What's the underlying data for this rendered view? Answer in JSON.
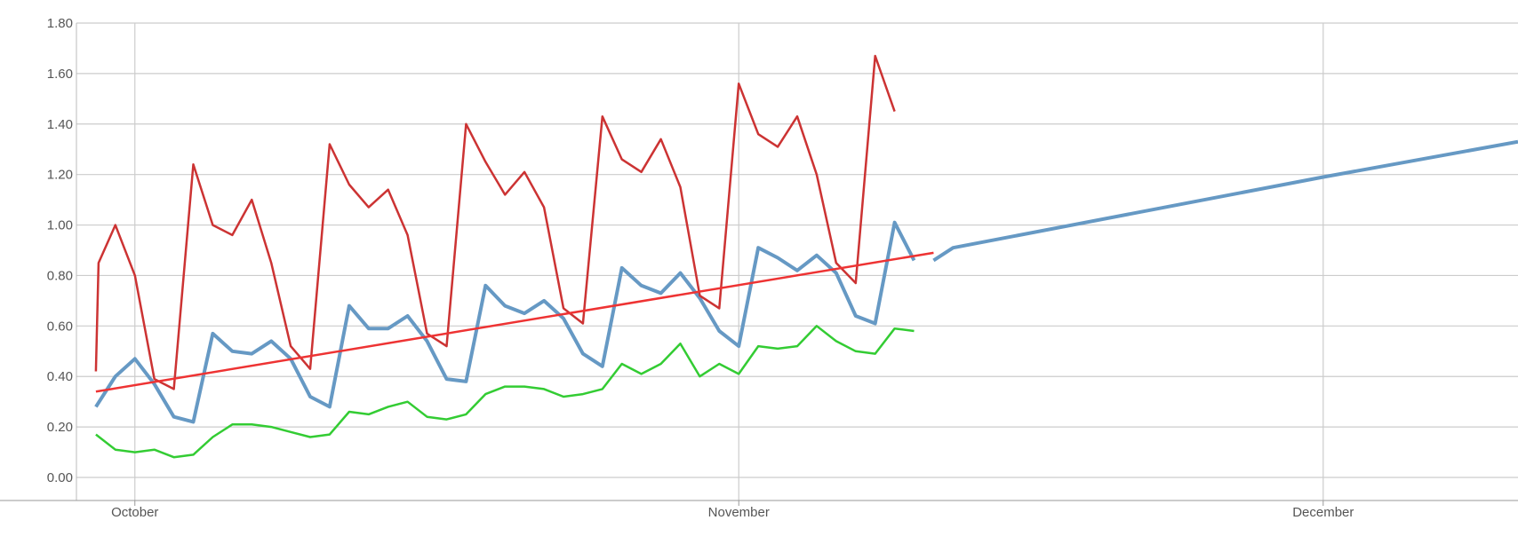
{
  "chart_data": {
    "type": "line",
    "title": "",
    "xlabel": "",
    "ylabel": "",
    "grid": true,
    "legend": "none",
    "x_ticks": [
      {
        "label": "October",
        "date": "2023-10-01"
      },
      {
        "label": "November",
        "date": "2023-11-01"
      },
      {
        "label": "December",
        "date": "2023-12-01"
      }
    ],
    "y_ticks": [
      "0.00",
      "0.20",
      "0.40",
      "0.60",
      "0.80",
      "1.00",
      "1.20",
      "1.40",
      "1.60",
      "1.80"
    ],
    "xlim": [
      "2023-09-28",
      "2023-12-11"
    ],
    "ylim": [
      0,
      1.8
    ],
    "x_dates": [
      "2023-09-29",
      "2023-09-30",
      "2023-10-01",
      "2023-10-02",
      "2023-10-03",
      "2023-10-04",
      "2023-10-05",
      "2023-10-06",
      "2023-10-07",
      "2023-10-08",
      "2023-10-09",
      "2023-10-10",
      "2023-10-11",
      "2023-10-12",
      "2023-10-13",
      "2023-10-14",
      "2023-10-15",
      "2023-10-16",
      "2023-10-17",
      "2023-10-18",
      "2023-10-19",
      "2023-10-20",
      "2023-10-21",
      "2023-10-22",
      "2023-10-23",
      "2023-10-24",
      "2023-10-25",
      "2023-10-26",
      "2023-10-27",
      "2023-10-28",
      "2023-10-29",
      "2023-10-30",
      "2023-10-31",
      "2023-11-01",
      "2023-11-02",
      "2023-11-03",
      "2023-11-04",
      "2023-11-05",
      "2023-11-06",
      "2023-11-07",
      "2023-11-08",
      "2023-11-09",
      "2023-11-10",
      "2023-11-11"
    ],
    "series": [
      {
        "color": "#cc3333",
        "values": [
          0.85,
          1.0,
          0.8,
          0.39,
          0.35,
          1.24,
          1.0,
          0.96,
          1.1,
          0.85,
          0.52,
          0.43,
          1.32,
          1.16,
          1.07,
          1.14,
          0.96,
          0.57,
          0.52,
          1.4,
          1.25,
          1.12,
          1.21,
          1.07,
          0.67,
          0.61,
          1.43,
          1.26,
          1.21,
          1.34,
          1.15,
          0.72,
          0.67,
          1.56,
          1.36,
          1.31,
          1.43,
          1.2,
          0.85,
          0.77,
          1.67,
          1.45
        ],
        "start_date": "2023-09-29",
        "first_value": 0.42
      },
      {
        "color": "#6699c4",
        "values": [
          0.28,
          0.4,
          0.47,
          0.37,
          0.24,
          0.22,
          0.57,
          0.5,
          0.49,
          0.54,
          0.47,
          0.32,
          0.28,
          0.68,
          0.59,
          0.59,
          0.64,
          0.54,
          0.39,
          0.38,
          0.76,
          0.68,
          0.65,
          0.7,
          0.63,
          0.49,
          0.44,
          0.83,
          0.76,
          0.73,
          0.81,
          0.71,
          0.58,
          0.52,
          0.91,
          0.87,
          0.82,
          0.88,
          0.81,
          0.64,
          0.61,
          1.01,
          0.86
        ]
      },
      {
        "color": "#33cc33",
        "values": [
          0.17,
          0.11,
          0.1,
          0.11,
          0.08,
          0.09,
          0.16,
          0.21,
          0.21,
          0.2,
          0.18,
          0.16,
          0.17,
          0.26,
          0.25,
          0.28,
          0.3,
          0.24,
          0.23,
          0.25,
          0.33,
          0.36,
          0.36,
          0.35,
          0.32,
          0.33,
          0.35,
          0.45,
          0.41,
          0.45,
          0.53,
          0.4,
          0.45,
          0.41,
          0.52,
          0.51,
          0.52,
          0.6,
          0.54,
          0.5,
          0.49,
          0.59,
          0.58
        ]
      }
    ],
    "trend": {
      "color": "#ee3333",
      "from": {
        "date": "2023-09-29",
        "value": 0.34
      },
      "to": {
        "date": "2023-11-11",
        "value": 0.89
      }
    },
    "forecast": {
      "color": "#6699c4",
      "points": [
        {
          "date": "2023-11-11",
          "value": 0.86
        },
        {
          "date": "2023-11-12",
          "value": 0.91
        },
        {
          "date": "2023-12-01",
          "value": 1.19
        },
        {
          "date": "2023-12-11",
          "value": 1.33
        }
      ]
    }
  }
}
